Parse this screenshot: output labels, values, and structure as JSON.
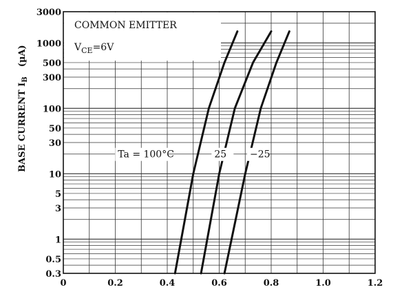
{
  "chart_data": {
    "type": "line",
    "title": "",
    "xlabel": "",
    "ylabel": {
      "main": "BASE CURRENT I",
      "sub": "B",
      "unit": "(µA)"
    },
    "xlim": [
      0,
      1.2
    ],
    "ylim": [
      0.3,
      3000
    ],
    "yscale": "log",
    "x_ticks": [
      "0",
      "0.2",
      "0.4",
      "0.6",
      "0.8",
      "1.0",
      "1.2"
    ],
    "y_ticks": [
      {
        "value": 3000,
        "label": "3000"
      },
      {
        "value": 1000,
        "label": "1000"
      },
      {
        "value": 500,
        "label": "500"
      },
      {
        "value": 300,
        "label": "300"
      },
      {
        "value": 100,
        "label": "100"
      },
      {
        "value": 50,
        "label": "50"
      },
      {
        "value": 30,
        "label": "30"
      },
      {
        "value": 10,
        "label": "10"
      },
      {
        "value": 5,
        "label": "5"
      },
      {
        "value": 3,
        "label": "3"
      },
      {
        "value": 1,
        "label": "1"
      },
      {
        "value": 0.5,
        "label": "0.5"
      },
      {
        "value": 0.3,
        "label": "0.3"
      }
    ],
    "grid": true,
    "annotation": {
      "line1": "COMMON EMITTER",
      "line2_main": "V",
      "line2_sub": "CE",
      "line2_rest": "=6V"
    },
    "series": [
      {
        "label": "Ta = 100°C",
        "x": [
          0.43,
          0.5,
          0.56,
          0.62,
          0.67
        ],
        "y": [
          0.3,
          10,
          100,
          500,
          1500
        ]
      },
      {
        "label": "25",
        "x": [
          0.53,
          0.6,
          0.66,
          0.73,
          0.8
        ],
        "y": [
          0.3,
          10,
          100,
          500,
          1500
        ]
      },
      {
        "label": "−25",
        "x": [
          0.62,
          0.7,
          0.76,
          0.82,
          0.87
        ],
        "y": [
          0.3,
          10,
          100,
          500,
          1500
        ]
      }
    ],
    "legend": "inline-on-curves"
  }
}
